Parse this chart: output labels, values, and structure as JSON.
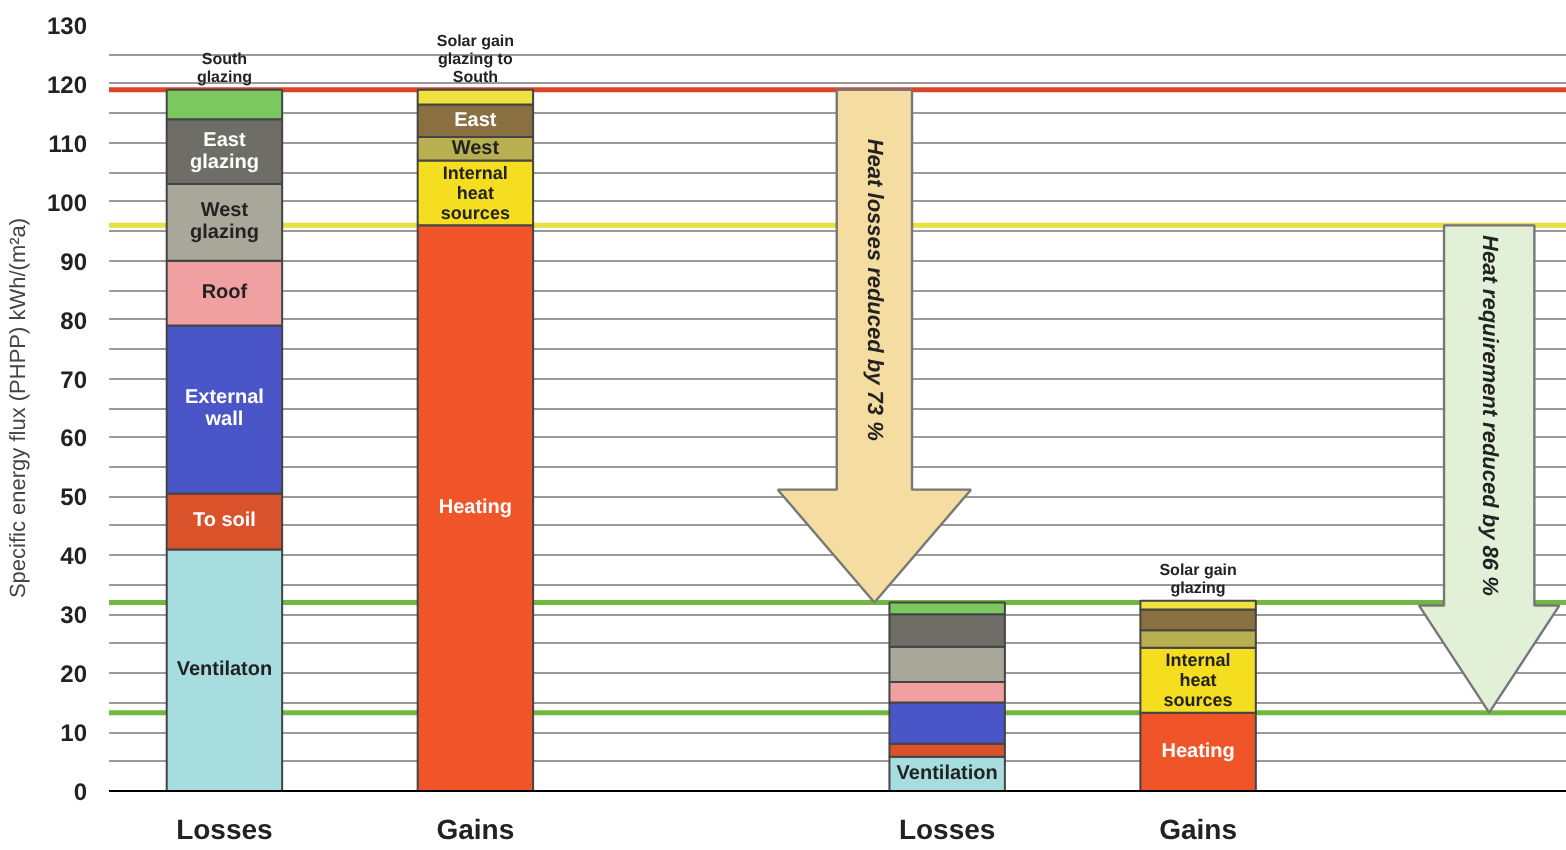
{
  "chart_data": {
    "type": "bar",
    "stacked": true,
    "categories": [
      "Losses",
      "Gains",
      "Losses",
      "Gains"
    ],
    "ylabel": "Specific energy flux (PHPP) kWh/(m²a)",
    "ylim": [
      0,
      130
    ],
    "yticks": [
      0,
      {
        "value": 5,
        "label": null
      },
      10,
      {
        "value": 15,
        "label": null
      },
      20,
      {
        "value": 25,
        "label": null
      },
      30,
      {
        "value": 35,
        "label": null
      },
      40,
      {
        "value": 45,
        "label": null
      },
      50,
      {
        "value": 55,
        "label": null
      },
      60,
      {
        "value": 65,
        "label": null
      },
      70,
      {
        "value": 75,
        "label": null
      },
      80,
      {
        "value": 85,
        "label": null
      },
      90,
      {
        "value": 95,
        "label": null
      },
      100,
      {
        "value": 105,
        "label": null
      },
      110,
      {
        "value": 115,
        "label": null
      },
      120,
      {
        "value": 125,
        "label": null
      },
      130
    ],
    "grid": "y",
    "series": [
      {
        "color": "#a8dde0",
        "values": [
          41,
          null,
          5.8,
          null
        ],
        "value_labels": [
          "Ventilaton",
          null,
          "Ventilation",
          null
        ]
      },
      {
        "color": "#d9522a",
        "values": [
          9.5,
          null,
          2.2,
          null
        ],
        "value_labels": [
          "To soil",
          null,
          null,
          null
        ]
      },
      {
        "color": "#4a55c8",
        "values": [
          28.5,
          null,
          7,
          null
        ],
        "value_labels": [
          "External\nwall",
          null,
          null,
          null
        ]
      },
      {
        "color": "#f0a0a0",
        "values": [
          11,
          null,
          3.5,
          null
        ],
        "value_labels": [
          "Roof",
          null,
          null,
          null
        ]
      },
      {
        "color": "#a8a89a",
        "values": [
          13,
          null,
          6,
          null
        ],
        "value_labels": [
          "West\nglazing",
          null,
          null,
          null
        ]
      },
      {
        "color": "#6e6e66",
        "values": [
          11,
          null,
          5.5,
          null
        ],
        "value_labels": [
          "East\nglazing",
          null,
          null,
          null
        ]
      },
      {
        "color": "#7cc860",
        "values": [
          5,
          null,
          2,
          null
        ],
        "value_labels": [
          "South\nglazing",
          null,
          null,
          null
        ]
      },
      {
        "color": "#f0552a",
        "values": [
          null,
          96,
          null,
          13.3
        ],
        "value_labels": [
          null,
          "Heating",
          null,
          "Heating"
        ]
      },
      {
        "color": "#f5dd20",
        "values": [
          null,
          11,
          null,
          11
        ],
        "value_labels": [
          null,
          "Internal\nheat\nsources",
          null,
          "Internal\nheat\nsources"
        ]
      },
      {
        "color": "#b8b050",
        "values": [
          null,
          4,
          null,
          3
        ],
        "value_labels": [
          null,
          "West",
          null,
          null
        ]
      },
      {
        "color": "#8a7040",
        "values": [
          null,
          5.5,
          null,
          3.5
        ],
        "value_labels": [
          null,
          "East",
          null,
          null
        ]
      },
      {
        "color": "#f0e040",
        "values": [
          null,
          2.5,
          null,
          1.5
        ],
        "value_labels": [
          null,
          "Solar gain\nglazing to\nSouth",
          null,
          "Solar gain\nglazing"
        ]
      }
    ],
    "ref_lines": [
      {
        "axis": "y",
        "value": 119,
        "color": "#d9452a"
      },
      {
        "axis": "y",
        "value": 96,
        "color": "#e8e040"
      },
      {
        "axis": "y",
        "value": 32,
        "color": "#70b840"
      },
      {
        "axis": "y",
        "value": 13.3,
        "color": "#70b840"
      }
    ],
    "annotations": [
      "Heat losses reduced by 73 %",
      "Heat requirement reduced by 86 %"
    ]
  }
}
